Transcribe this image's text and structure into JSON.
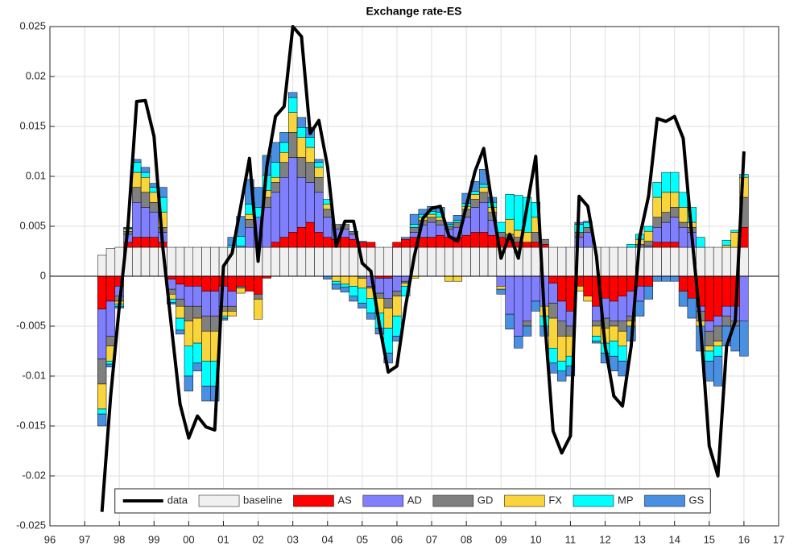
{
  "chart_data": {
    "type": "bar",
    "stacked": true,
    "title": "Exchange rate-ES",
    "x": [
      1997.5,
      1997.75,
      1998,
      1998.25,
      1998.5,
      1998.75,
      1999,
      1999.25,
      1999.5,
      1999.75,
      2000,
      2000.25,
      2000.5,
      2000.75,
      2001,
      2001.25,
      2001.5,
      2001.75,
      2002,
      2002.25,
      2002.5,
      2002.75,
      2003,
      2003.25,
      2003.5,
      2003.75,
      2004,
      2004.25,
      2004.5,
      2004.75,
      2005,
      2005.25,
      2005.5,
      2005.75,
      2006,
      2006.25,
      2006.5,
      2006.75,
      2007,
      2007.25,
      2007.5,
      2007.75,
      2008,
      2008.25,
      2008.5,
      2008.75,
      2009,
      2009.25,
      2009.5,
      2009.75,
      2010,
      2010.25,
      2010.5,
      2010.75,
      2011,
      2011.25,
      2011.5,
      2011.75,
      2012,
      2012.25,
      2012.5,
      2012.75,
      2013,
      2013.25,
      2013.5,
      2013.75,
      2014,
      2014.25,
      2014.5,
      2014.75,
      2015,
      2015.25,
      2015.5,
      2015.75,
      2016
    ],
    "series": [
      {
        "name": "data",
        "type": "line",
        "color": "#000000",
        "values": [
          -0.0236,
          -0.012,
          -0.003,
          0.005,
          0.0175,
          0.0176,
          0.014,
          0.003,
          -0.005,
          -0.0128,
          -0.0162,
          -0.014,
          -0.0151,
          -0.0154,
          0.001,
          0.0023,
          0.007,
          0.0118,
          0.0015,
          0.011,
          0.016,
          0.017,
          0.025,
          0.024,
          0.0143,
          0.0156,
          0.011,
          0.003,
          0.0055,
          0.0055,
          0.0013,
          0.0005,
          -0.005,
          -0.0096,
          -0.009,
          -0.003,
          0.002,
          0.0058,
          0.0068,
          0.007,
          0.004,
          0.0035,
          0.007,
          0.0105,
          0.0128,
          0.007,
          0.0018,
          0.0042,
          0.0018,
          0.007,
          0.012,
          -0.004,
          -0.0155,
          -0.0177,
          -0.016,
          0.008,
          0.007,
          0.002,
          -0.007,
          -0.012,
          -0.013,
          -0.007,
          0.004,
          0.008,
          0.0158,
          0.0155,
          0.016,
          0.0138,
          0.004,
          -0.005,
          -0.017,
          -0.02,
          -0.007,
          -0.0045,
          0.0125
        ]
      },
      {
        "name": "baseline",
        "color": "#f0f0f0",
        "values": [
          0.0021,
          0.0028,
          0.0029,
          0.0029,
          0.0029,
          0.0029,
          0.0029,
          0.0029,
          0.0029,
          0.0029,
          0.0029,
          0.0029,
          0.0029,
          0.0029,
          0.0029,
          0.0029,
          0.0029,
          0.0029,
          0.0029,
          0.0029,
          0.0029,
          0.0029,
          0.0029,
          0.0029,
          0.0029,
          0.0029,
          0.0029,
          0.0029,
          0.0029,
          0.0029,
          0.0029,
          0.0029,
          0.0029,
          0.0029,
          0.0029,
          0.0029,
          0.0029,
          0.0029,
          0.0029,
          0.0029,
          0.0029,
          0.0029,
          0.0029,
          0.0029,
          0.0029,
          0.0029,
          0.0029,
          0.0029,
          0.0029,
          0.0029,
          0.0029,
          0.0029,
          0.0029,
          0.0029,
          0.0029,
          0.0029,
          0.0029,
          0.0029,
          0.0029,
          0.0029,
          0.0029,
          0.0029,
          0.0029,
          0.0029,
          0.0029,
          0.0029,
          0.0029,
          0.0029,
          0.0029,
          0.0029,
          0.0029,
          0.0029,
          0.0029,
          0.0029,
          0.0029
        ]
      },
      {
        "name": "AS",
        "color": "#ff0000",
        "values": [
          -0.0033,
          -0.0025,
          -0.001,
          0.0005,
          0.001,
          0.001,
          0.001,
          0.0005,
          -0.0003,
          -0.0008,
          -0.001,
          -0.001,
          -0.0015,
          -0.0015,
          -0.001,
          -0.0015,
          -0.001,
          -0.0015,
          -0.0018,
          -0.0002,
          0.0005,
          0.001,
          0.0015,
          0.002,
          0.0025,
          0.0015,
          0.001,
          0.0008,
          0.001,
          0.0008,
          0.0005,
          0.0005,
          -0.0002,
          -0.0002,
          0.0005,
          0.0008,
          0.001,
          0.001,
          0.001,
          0.0012,
          0.001,
          0.001,
          0.0012,
          0.0015,
          0.0015,
          0.0012,
          0.001,
          0.0008,
          0.0005,
          0.0005,
          0.0005,
          0.0003,
          -0.0007,
          -0.0025,
          -0.0035,
          -0.001,
          -0.002,
          -0.003,
          -0.0022,
          -0.0025,
          -0.002,
          -0.0015,
          -0.001,
          -0.001,
          0.0005,
          0.0005,
          0.0005,
          -0.0015,
          -0.0022,
          -0.003,
          -0.0045,
          -0.004,
          -0.003,
          -0.003,
          0.002
        ]
      },
      {
        "name": "AD",
        "color": "#8080ff",
        "values": [
          -0.005,
          -0.0035,
          -0.001,
          0.0008,
          0.0035,
          0.003,
          0.0025,
          0.001,
          -0.001,
          -0.0015,
          -0.002,
          -0.002,
          -0.0025,
          -0.0025,
          -0.002,
          -0.0015,
          0.0001,
          0.002,
          0.003,
          0.004,
          0.005,
          0.006,
          0.0075,
          0.005,
          0.004,
          0.004,
          0.002,
          0.001,
          0.0008,
          0.0005,
          0.0001,
          -0.001,
          -0.0015,
          -0.002,
          -0.0015,
          -0.0005,
          0.0005,
          0.0012,
          0.0015,
          0.001,
          0.0008,
          0.001,
          0.0018,
          0.0025,
          0.003,
          0.0015,
          -0.001,
          -0.0038,
          -0.006,
          -0.0045,
          -0.0025,
          -0.003,
          -0.002,
          -0.002,
          -0.0015,
          0.001,
          0.0015,
          -0.0015,
          -0.002,
          -0.002,
          -0.0025,
          -0.0025,
          -0.0015,
          0.0001,
          0.0015,
          0.002,
          0.0025,
          0.002,
          0.0015,
          -0.0005,
          -0.001,
          -0.001,
          -0.001,
          -0.0015,
          -0.0045
        ]
      },
      {
        "name": "GD",
        "color": "#808080",
        "values": [
          -0.0025,
          -0.001,
          -0.0005,
          0.0003,
          0.0015,
          0.0015,
          0.001,
          0.0005,
          -0.0005,
          -0.0007,
          -0.0015,
          -0.0012,
          -0.0015,
          -0.0015,
          -0.0005,
          -0.0005,
          -0.0002,
          0.0008,
          -0.0005,
          0.001,
          0.001,
          0.0015,
          0.0025,
          0.002,
          0.002,
          0.0015,
          0.0008,
          0.0005,
          0.0005,
          0.0003,
          -0.0002,
          -0.0002,
          -0.0005,
          -0.001,
          -0.0005,
          -0.0002,
          0.0005,
          0.0005,
          0.0005,
          0.0005,
          0.0003,
          0.0005,
          0.0008,
          0.0008,
          0.001,
          0.0008,
          0.0005,
          0.0005,
          0.0005,
          -0.0005,
          0.001,
          0.0005,
          -0.0015,
          -0.0015,
          -0.001,
          0.0005,
          0.0005,
          -0.0005,
          -0.001,
          -0.0005,
          -0.001,
          -0.0005,
          0.0003,
          0.0005,
          0.001,
          0.001,
          0.001,
          0.0005,
          0.0005,
          -0.001,
          -0.0015,
          -0.0015,
          -0.001,
          -0.0005,
          0.003
        ]
      },
      {
        "name": "FX",
        "color": "#f9d43a",
        "values": [
          -0.0025,
          -0.0015,
          -0.0003,
          0.0002,
          0.0015,
          0.0015,
          0.001,
          0.0015,
          -0.0005,
          -0.0012,
          -0.0025,
          -0.0025,
          -0.003,
          -0.003,
          -0.0005,
          -0.0005,
          -0.0005,
          0.0005,
          -0.002,
          0.0007,
          0.0005,
          0.001,
          0.002,
          0.002,
          0.0015,
          0.001,
          0.0005,
          -0.0005,
          -0.0008,
          -0.001,
          -0.001,
          -0.001,
          -0.0015,
          -0.002,
          -0.002,
          -0.0003,
          -0.0002,
          0.0003,
          0.0003,
          0.0003,
          -0.0005,
          -0.0005,
          0.0003,
          0.0005,
          0.0005,
          0.0005,
          -0.0003,
          0.0015,
          0.0007,
          0.001,
          0.0015,
          -0.001,
          -0.003,
          -0.0025,
          -0.002,
          -0.0005,
          -0.0005,
          -0.001,
          -0.0015,
          -0.0015,
          -0.0015,
          -0.0005,
          0.0005,
          0.001,
          0.002,
          0.002,
          0.0015,
          0.0015,
          0.0005,
          -0.0005,
          -0.0005,
          -0.0005,
          0.0002,
          0.0015,
          0.002
        ]
      },
      {
        "name": "MP",
        "color": "#00ffff",
        "values": [
          -0.0005,
          -0.0003,
          -0.0002,
          0.0001,
          0.001,
          0.0005,
          0.0005,
          0.0015,
          -0.0003,
          -0.0012,
          -0.003,
          -0.002,
          -0.0025,
          -0.0025,
          -0.0002,
          0.0002,
          0.001,
          0.001,
          0.001,
          0.0015,
          0.0015,
          0.001,
          0.0015,
          0.001,
          0.001,
          0.0005,
          0.0005,
          -0.0003,
          -0.0003,
          -0.001,
          -0.0015,
          -0.0015,
          -0.0015,
          -0.0025,
          -0.002,
          -0.001,
          0.0003,
          0.0003,
          0.0003,
          0.0005,
          0.0002,
          0.0002,
          0.0003,
          0.0003,
          0.0003,
          0.0005,
          0.001,
          0.0025,
          0.0035,
          0.0035,
          0.0015,
          -0.001,
          -0.0015,
          -0.001,
          -0.001,
          0.0008,
          0.0005,
          -0.0005,
          -0.001,
          -0.0015,
          -0.0015,
          0.0003,
          0.0005,
          0.0005,
          0.0015,
          0.002,
          0.002,
          0.0015,
          0.0015,
          0.001,
          -0.001,
          -0.001,
          0.0005,
          0.0002,
          0.0003
        ]
      },
      {
        "name": "GS",
        "color": "#4a90e2",
        "values": [
          -0.0012,
          -0.0003,
          -0.0002,
          0.0001,
          0.0003,
          0.0005,
          0.0004,
          0.001,
          -0.0002,
          -0.0004,
          -0.0015,
          -0.0008,
          -0.0015,
          -0.0015,
          -0.0002,
          0.0008,
          0.002,
          0.0025,
          0.002,
          0.002,
          0.002,
          0.001,
          0.0005,
          0.001,
          0.001,
          0.0003,
          -0.0003,
          -0.0005,
          -0.0005,
          -0.0005,
          -0.0005,
          -0.0006,
          -0.0006,
          -0.001,
          -0.0005,
          0.0002,
          0.001,
          0.0005,
          0.0005,
          0.0005,
          0.0002,
          0.0005,
          0.001,
          0.001,
          0.0015,
          0.0005,
          -0.0005,
          -0.0015,
          -0.0012,
          -0.001,
          -0.001,
          -0.001,
          -0.001,
          -0.001,
          -0.001,
          0.0002,
          0.0001,
          -0.0002,
          -0.001,
          -0.0015,
          -0.0015,
          -0.0015,
          -0.0015,
          -0.0013,
          -0.0005,
          -0.0005,
          -0.0005,
          -0.0015,
          -0.002,
          -0.0025,
          -0.002,
          -0.003,
          -0.002,
          -0.0025,
          -0.0035
        ]
      }
    ],
    "xlim": [
      1996,
      2017
    ],
    "xticks": [
      {
        "value": 1996,
        "label": "96"
      },
      {
        "value": 1997,
        "label": "97"
      },
      {
        "value": 1998,
        "label": "98"
      },
      {
        "value": 1999,
        "label": "99"
      },
      {
        "value": 2000,
        "label": "00"
      },
      {
        "value": 2001,
        "label": "01"
      },
      {
        "value": 2002,
        "label": "02"
      },
      {
        "value": 2003,
        "label": "03"
      },
      {
        "value": 2004,
        "label": "04"
      },
      {
        "value": 2005,
        "label": "05"
      },
      {
        "value": 2006,
        "label": "06"
      },
      {
        "value": 2007,
        "label": "07"
      },
      {
        "value": 2008,
        "label": "08"
      },
      {
        "value": 2009,
        "label": "09"
      },
      {
        "value": 2010,
        "label": "10"
      },
      {
        "value": 2011,
        "label": "11"
      },
      {
        "value": 2012,
        "label": "12"
      },
      {
        "value": 2013,
        "label": "13"
      },
      {
        "value": 2014,
        "label": "14"
      },
      {
        "value": 2015,
        "label": "15"
      },
      {
        "value": 2016,
        "label": "16"
      },
      {
        "value": 2017,
        "label": "17"
      }
    ],
    "ylim": [
      -0.025,
      0.025
    ],
    "yticks": [
      -0.025,
      -0.02,
      -0.015,
      -0.01,
      -0.005,
      0,
      0.005,
      0.01,
      0.015,
      0.02,
      0.025
    ],
    "grid": true,
    "legend": "south"
  }
}
